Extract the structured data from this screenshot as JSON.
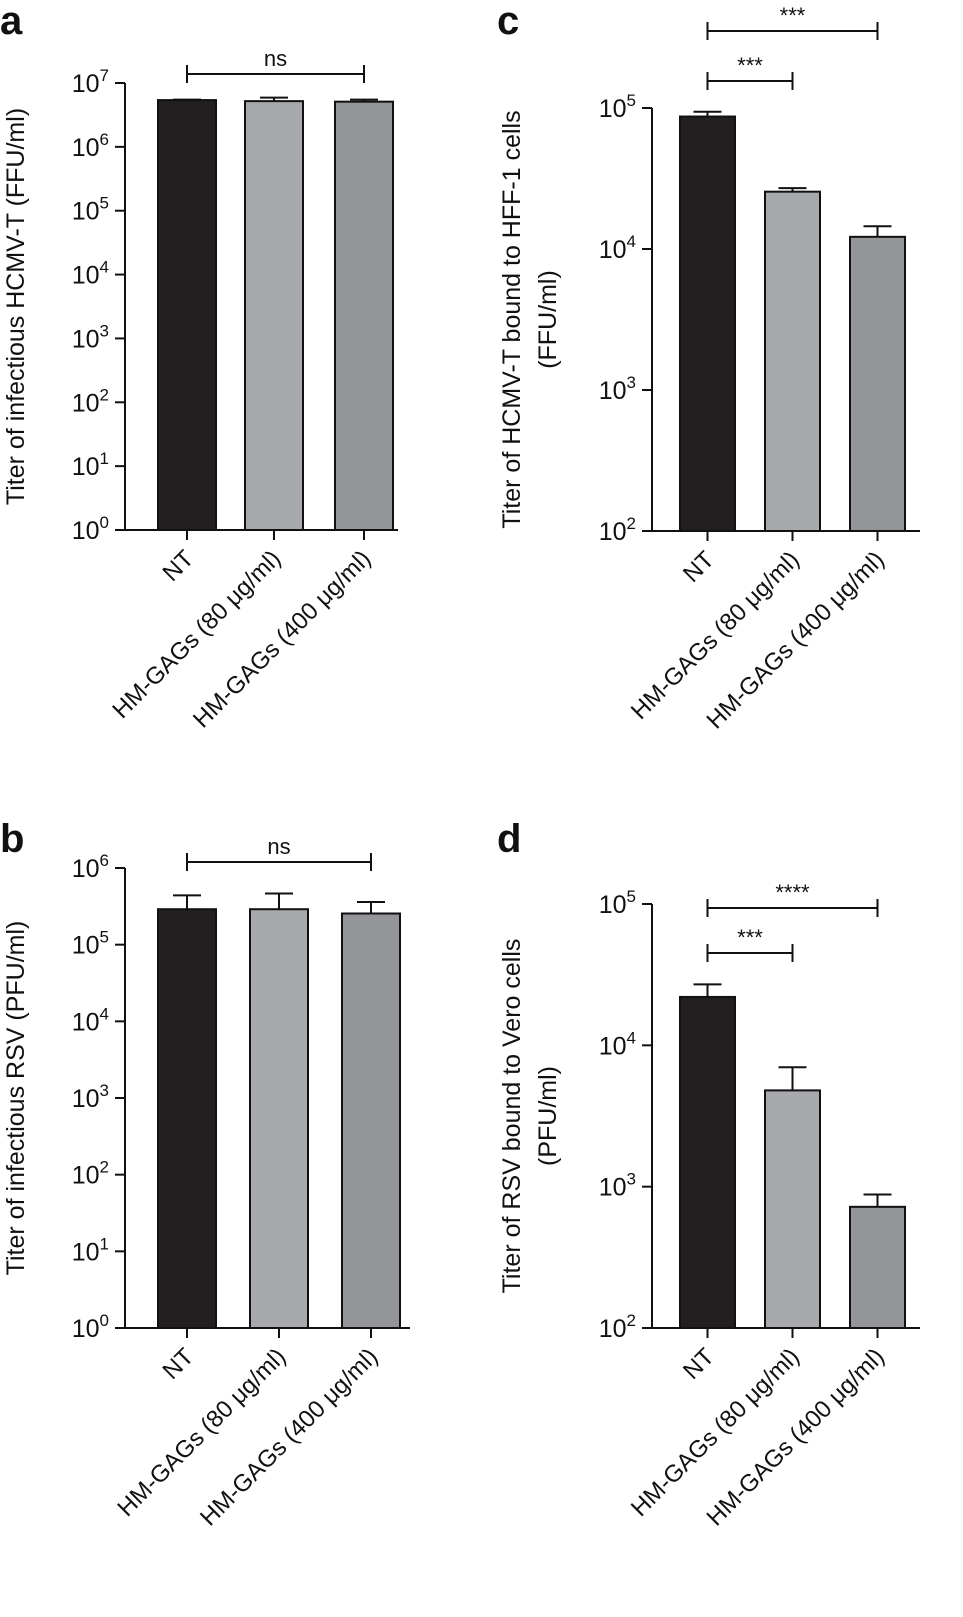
{
  "chart_data": [
    {
      "panel": "a",
      "type": "bar",
      "ylabel": "Titer of infectious HCMV-T (FFU/ml)",
      "yscale": "log",
      "ylim": [
        1,
        10000000
      ],
      "yticks": [
        {
          "base": "10",
          "exp": "0"
        },
        {
          "base": "10",
          "exp": "1"
        },
        {
          "base": "10",
          "exp": "2"
        },
        {
          "base": "10",
          "exp": "3"
        },
        {
          "base": "10",
          "exp": "4"
        },
        {
          "base": "10",
          "exp": "5"
        },
        {
          "base": "10",
          "exp": "6"
        },
        {
          "base": "10",
          "exp": "7"
        }
      ],
      "categories": [
        "NT",
        "HM-GAGs (80 μg/ml)",
        "HM-GAGs (400 μg/ml)"
      ],
      "values": [
        5400000,
        5200000,
        5100000
      ],
      "error_upper": [
        5500000,
        5900000,
        5500000
      ],
      "colors": [
        "#231f20",
        "#a7a9ac",
        "#939598"
      ],
      "significance": [
        {
          "from": 0,
          "to": 2,
          "label": "ns"
        }
      ]
    },
    {
      "panel": "b",
      "type": "bar",
      "ylabel": "Titer of infectious RSV (PFU/ml)",
      "yscale": "log",
      "ylim": [
        1,
        1000000
      ],
      "yticks": [
        {
          "base": "10",
          "exp": "0"
        },
        {
          "base": "10",
          "exp": "1"
        },
        {
          "base": "10",
          "exp": "2"
        },
        {
          "base": "10",
          "exp": "3"
        },
        {
          "base": "10",
          "exp": "4"
        },
        {
          "base": "10",
          "exp": "5"
        },
        {
          "base": "10",
          "exp": "6"
        }
      ],
      "categories": [
        "NT",
        "HM-GAGs (80 μg/ml)",
        "HM-GAGs (400 μg/ml)"
      ],
      "values": [
        290000,
        290000,
        255000
      ],
      "error_upper": [
        440000,
        465000,
        360000
      ],
      "colors": [
        "#231f20",
        "#a7a9ac",
        "#939598"
      ],
      "significance": [
        {
          "from": 0,
          "to": 2,
          "label": "ns"
        }
      ]
    },
    {
      "panel": "c",
      "type": "bar",
      "ylabel": [
        "Titer of HCMV-T bound to HFF-1 cells",
        "(FFU/ml)"
      ],
      "yscale": "log",
      "ylim": [
        100,
        100000
      ],
      "yticks": [
        {
          "base": "10",
          "exp": "2"
        },
        {
          "base": "10",
          "exp": "3"
        },
        {
          "base": "10",
          "exp": "4"
        },
        {
          "base": "10",
          "exp": "5"
        }
      ],
      "categories": [
        "NT",
        "HM-GAGs (80 μg/ml)",
        "HM-GAGs (400 μg/ml)"
      ],
      "values": [
        87000,
        25500,
        12200
      ],
      "error_upper": [
        94000,
        27000,
        14500
      ],
      "colors": [
        "#231f20",
        "#a7a9ac",
        "#939598"
      ],
      "significance": [
        {
          "from": 0,
          "to": 1,
          "label": "***"
        },
        {
          "from": 0,
          "to": 2,
          "label": "***"
        }
      ]
    },
    {
      "panel": "d",
      "type": "bar",
      "ylabel": [
        "Titer of RSV bound to Vero cells",
        "(PFU/ml)"
      ],
      "yscale": "log",
      "ylim": [
        100,
        100000
      ],
      "yticks": [
        {
          "base": "10",
          "exp": "2"
        },
        {
          "base": "10",
          "exp": "3"
        },
        {
          "base": "10",
          "exp": "4"
        },
        {
          "base": "10",
          "exp": "5"
        }
      ],
      "categories": [
        "NT",
        "HM-GAGs (80 μg/ml)",
        "HM-GAGs (400 μg/ml)"
      ],
      "values": [
        22000,
        4800,
        720
      ],
      "error_upper": [
        27000,
        7000,
        880
      ],
      "colors": [
        "#231f20",
        "#a7a9ac",
        "#939598"
      ],
      "significance": [
        {
          "from": 0,
          "to": 1,
          "label": "***"
        },
        {
          "from": 0,
          "to": 2,
          "label": "****"
        }
      ]
    }
  ]
}
